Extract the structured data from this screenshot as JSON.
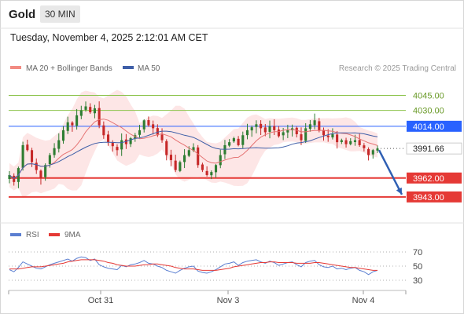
{
  "header": {
    "instrument": "Gold",
    "timeframe": "30 MIN",
    "datetime": "Tuesday, November 4, 2025 2:12:01 AM CET"
  },
  "legend": {
    "bollinger": "MA 20 + Bollinger Bands",
    "ma50": "MA 50",
    "credit": "Research © 2025 Trading Central",
    "rsi": "RSI",
    "rsi_ma": "9MA"
  },
  "colors": {
    "up_candle": "#2e7d32",
    "down_candle": "#c62828",
    "bollinger_fill": "#fde2e2",
    "ma20": "#e57373",
    "ma50": "#3f5fa8",
    "resistance": "#8bc34a",
    "pivot": "#2962ff",
    "support": "#e53935",
    "rsi": "#5b7fd1",
    "rsi_ma": "#e53935"
  },
  "chart_data": [
    {
      "type": "candlestick",
      "x_ticks": [
        "Oct 31",
        "Nov 3",
        "Nov 4"
      ],
      "ylim": [
        3920,
        4062
      ],
      "levels": [
        {
          "value": 4045.0,
          "label": "4045.00",
          "kind": "resistance"
        },
        {
          "value": 4030.0,
          "label": "4030.00",
          "kind": "resistance"
        },
        {
          "value": 4014.0,
          "label": "4014.00",
          "kind": "pivot"
        },
        {
          "value": 3991.66,
          "label": "3991.66",
          "kind": "last"
        },
        {
          "value": 3962.0,
          "label": "3962.00",
          "kind": "support"
        },
        {
          "value": 3943.0,
          "label": "3943.00",
          "kind": "support"
        }
      ],
      "close_series": [
        3965,
        3958,
        3972,
        3995,
        3990,
        3978,
        3970,
        3962,
        3975,
        3985,
        3992,
        4000,
        4010,
        4018,
        4015,
        4025,
        4030,
        4034,
        4028,
        4032,
        4015,
        4005,
        3998,
        3994,
        3990,
        4000,
        3996,
        4002,
        4005,
        4010,
        4020,
        4015,
        4012,
        4005,
        4000,
        3985,
        3980,
        3970,
        3978,
        3985,
        3990,
        3993,
        3975,
        3970,
        3965,
        3968,
        3975,
        3985,
        3995,
        3998,
        4002,
        3995,
        4005,
        4010,
        4013,
        4016,
        4012,
        4008,
        4014,
        4010,
        4004,
        4008,
        4010,
        4012,
        4006,
        4000,
        4012,
        4016,
        4020,
        4010,
        4005,
        4003,
        4006,
        3998,
        4000,
        3996,
        3999,
        4000,
        3995,
        3992,
        3985,
        3990,
        3991.66
      ],
      "forecast_arrow": {
        "from": 3991.66,
        "to": 3943.0
      }
    },
    {
      "type": "line",
      "name": "RSI",
      "ylim": [
        20,
        80
      ],
      "y_ticks": [
        70,
        50,
        30
      ],
      "rsi": [
        45,
        42,
        48,
        56,
        53,
        50,
        47,
        46,
        49,
        52,
        54,
        56,
        58,
        60,
        57,
        61,
        63,
        62,
        58,
        60,
        52,
        49,
        47,
        46,
        45,
        51,
        49,
        52,
        53,
        55,
        58,
        54,
        53,
        50,
        48,
        44,
        42,
        40,
        44,
        47,
        49,
        50,
        43,
        41,
        40,
        42,
        45,
        49,
        53,
        54,
        56,
        51,
        55,
        57,
        58,
        59,
        56,
        54,
        57,
        55,
        51,
        53,
        55,
        56,
        52,
        49,
        55,
        57,
        58,
        52,
        49,
        48,
        50,
        46,
        47,
        45,
        47,
        48,
        44,
        42,
        38,
        42,
        44
      ],
      "rsi_ma": [
        46,
        46,
        46,
        47,
        48,
        49,
        49,
        49,
        50,
        51,
        52,
        53,
        54,
        56,
        57,
        58,
        59,
        59,
        59,
        59,
        58,
        57,
        55,
        54,
        52,
        51,
        50,
        50,
        50,
        51,
        52,
        52,
        53,
        53,
        52,
        51,
        50,
        48,
        47,
        46,
        46,
        46,
        45,
        44,
        44,
        44,
        44,
        45,
        46,
        47,
        49,
        50,
        51,
        52,
        53,
        54,
        55,
        55,
        56,
        56,
        55,
        55,
        55,
        55,
        54,
        54,
        54,
        54,
        55,
        55,
        54,
        53,
        52,
        51,
        50,
        49,
        48,
        48,
        47,
        46,
        45,
        44,
        44
      ]
    }
  ]
}
